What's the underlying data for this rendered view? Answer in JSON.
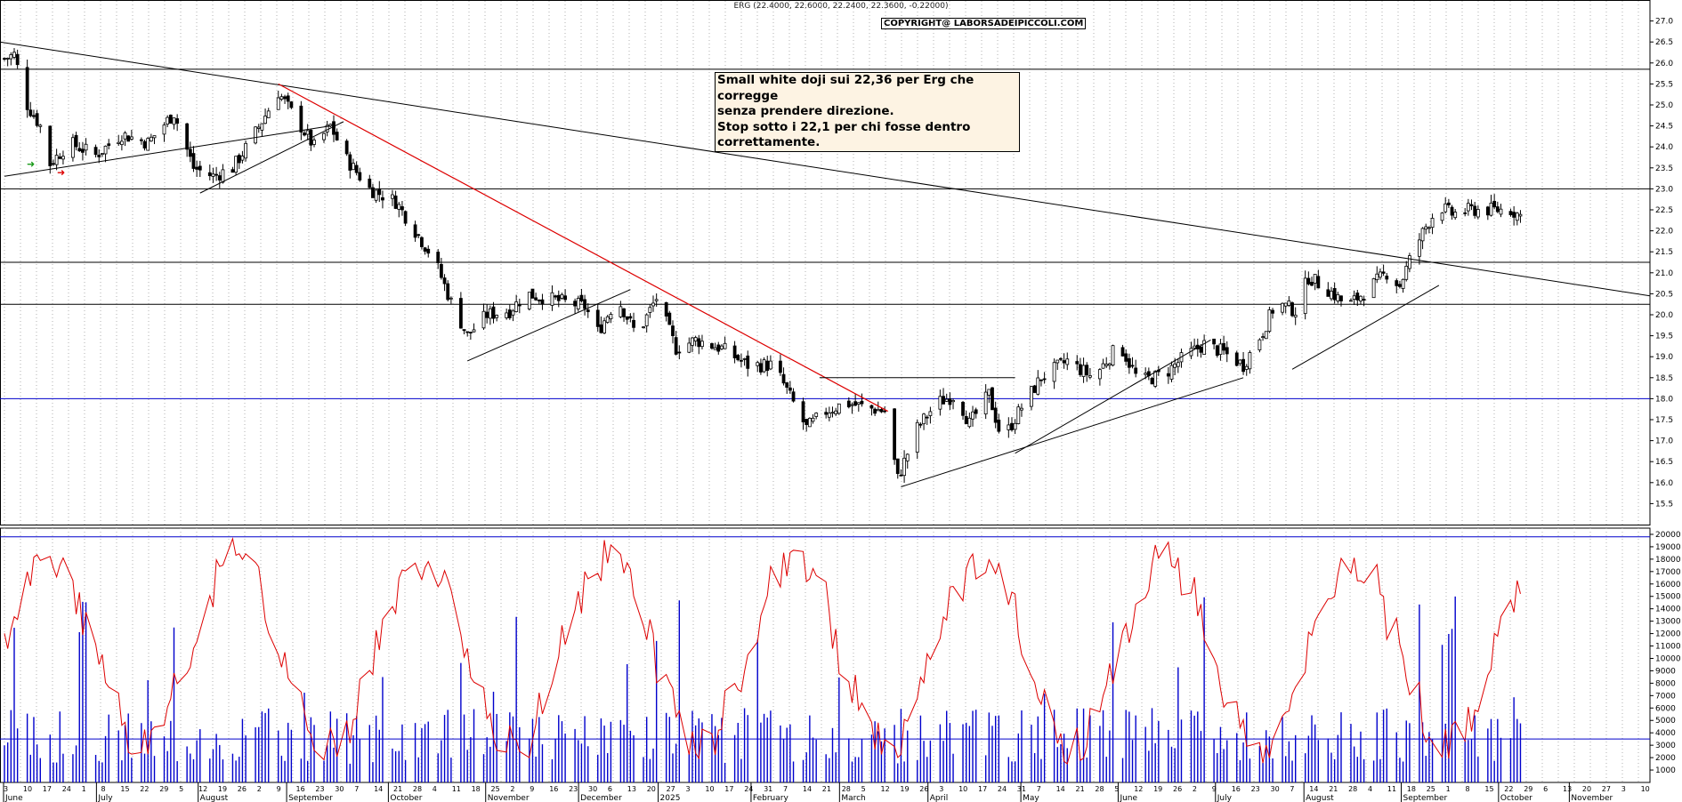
{
  "header": {
    "quote": "ERG (22.4000, 22.6000, 22.2400, 22.3600, -0.22000)",
    "copyright": "COPYRIGHT@ LABORSADEIPICCOLI.COM"
  },
  "note": {
    "line1": "Small white doji sui 22,36 per Erg che corregge",
    "line2": "senza prendere direzione.",
    "line3": "Stop sotto i 22,1 per chi fosse dentro correttamente."
  },
  "chart_data": [
    {
      "type": "candlestick",
      "symbol": "ERG",
      "ylim": [
        15.0,
        27.5
      ],
      "ticks": [
        "15.5",
        "16.0",
        "16.5",
        "17.0",
        "17.5",
        "18.0",
        "18.5",
        "19.0",
        "19.5",
        "20.0",
        "20.5",
        "21.0",
        "21.5",
        "22.0",
        "22.5",
        "23.0",
        "23.5",
        "24.0",
        "24.5",
        "25.0",
        "25.5",
        "26.0",
        "26.5",
        "27.0"
      ],
      "anchors": [
        {
          "d": 0,
          "c": 26.1
        },
        {
          "d": 3,
          "c": 26.2
        },
        {
          "d": 7,
          "c": 25.0
        },
        {
          "d": 11,
          "c": 24.5
        },
        {
          "d": 14,
          "c": 23.6
        },
        {
          "d": 20,
          "c": 24.1
        },
        {
          "d": 28,
          "c": 23.8
        },
        {
          "d": 36,
          "c": 24.3
        },
        {
          "d": 44,
          "c": 24.1
        },
        {
          "d": 52,
          "c": 24.8
        },
        {
          "d": 58,
          "c": 23.5
        },
        {
          "d": 64,
          "c": 23.3
        },
        {
          "d": 70,
          "c": 23.5
        },
        {
          "d": 76,
          "c": 24.2
        },
        {
          "d": 84,
          "c": 25.3
        },
        {
          "d": 90,
          "c": 24.6
        },
        {
          "d": 95,
          "c": 24.0
        },
        {
          "d": 100,
          "c": 24.5
        },
        {
          "d": 105,
          "c": 23.7
        },
        {
          "d": 112,
          "c": 23.0
        },
        {
          "d": 120,
          "c": 22.7
        },
        {
          "d": 126,
          "c": 22.0
        },
        {
          "d": 132,
          "c": 21.3
        },
        {
          "d": 137,
          "c": 20.3
        },
        {
          "d": 142,
          "c": 19.5
        },
        {
          "d": 148,
          "c": 20.0
        },
        {
          "d": 155,
          "c": 20.1
        },
        {
          "d": 160,
          "c": 20.5
        },
        {
          "d": 166,
          "c": 20.4
        },
        {
          "d": 172,
          "c": 20.3
        },
        {
          "d": 178,
          "c": 20.2
        },
        {
          "d": 182,
          "c": 19.6
        },
        {
          "d": 188,
          "c": 20.4
        },
        {
          "d": 194,
          "c": 19.5
        },
        {
          "d": 200,
          "c": 20.4
        },
        {
          "d": 206,
          "c": 19.2
        },
        {
          "d": 212,
          "c": 19.4
        },
        {
          "d": 220,
          "c": 19.2
        },
        {
          "d": 228,
          "c": 18.8
        },
        {
          "d": 236,
          "c": 18.8
        },
        {
          "d": 242,
          "c": 17.9
        },
        {
          "d": 246,
          "c": 17.3
        },
        {
          "d": 252,
          "c": 17.7
        },
        {
          "d": 258,
          "c": 17.9
        },
        {
          "d": 264,
          "c": 17.8
        },
        {
          "d": 270,
          "c": 17.7
        },
        {
          "d": 274,
          "c": 16.1
        },
        {
          "d": 280,
          "c": 17.3
        },
        {
          "d": 286,
          "c": 17.9
        },
        {
          "d": 292,
          "c": 18.1
        },
        {
          "d": 296,
          "c": 17.4
        },
        {
          "d": 302,
          "c": 18.1
        },
        {
          "d": 306,
          "c": 17.0
        },
        {
          "d": 312,
          "c": 17.8
        },
        {
          "d": 318,
          "c": 18.5
        },
        {
          "d": 326,
          "c": 18.9
        },
        {
          "d": 334,
          "c": 18.5
        },
        {
          "d": 342,
          "c": 19.3
        },
        {
          "d": 348,
          "c": 18.4
        },
        {
          "d": 356,
          "c": 18.6
        },
        {
          "d": 362,
          "c": 19.0
        },
        {
          "d": 368,
          "c": 19.3
        },
        {
          "d": 374,
          "c": 19.1
        },
        {
          "d": 380,
          "c": 18.8
        },
        {
          "d": 386,
          "c": 19.6
        },
        {
          "d": 390,
          "c": 20.3
        },
        {
          "d": 396,
          "c": 20.1
        },
        {
          "d": 400,
          "c": 20.9
        },
        {
          "d": 406,
          "c": 20.6
        },
        {
          "d": 412,
          "c": 20.2
        },
        {
          "d": 418,
          "c": 20.6
        },
        {
          "d": 424,
          "c": 21.0
        },
        {
          "d": 428,
          "c": 20.7
        },
        {
          "d": 432,
          "c": 21.5
        },
        {
          "d": 436,
          "c": 22.1
        },
        {
          "d": 440,
          "c": 22.6
        },
        {
          "d": 444,
          "c": 22.4
        },
        {
          "d": 450,
          "c": 22.5
        },
        {
          "d": 456,
          "c": 22.5
        },
        {
          "d": 462,
          "c": 22.5
        },
        {
          "d": 465,
          "c": 22.36
        }
      ],
      "horizontal_levels": [
        {
          "price": 25.85,
          "color": "#000000"
        },
        {
          "price": 23.0,
          "color": "#000000"
        },
        {
          "price": 21.25,
          "color": "#000000"
        },
        {
          "price": 20.25,
          "color": "#000000"
        },
        {
          "price": 18.0,
          "color": "#0000cc"
        }
      ]
    },
    {
      "type": "bar+line",
      "ylim": [
        0,
        20500
      ],
      "ticks": [
        "1000",
        "2000",
        "3000",
        "4000",
        "5000",
        "6000",
        "7000",
        "8000",
        "9000",
        "10000",
        "11000",
        "12000",
        "13000",
        "14000",
        "15000",
        "16000",
        "17000",
        "18000",
        "19000",
        "20000"
      ],
      "volume_color": "#0000cc",
      "oscillator_color": "#dd0000",
      "reference_levels": [
        3500,
        19800
      ]
    }
  ],
  "x_axis": {
    "day_labels": [
      "3",
      "10",
      "17",
      "24",
      "1",
      "8",
      "15",
      "22",
      "29",
      "5",
      "12",
      "19",
      "26",
      "2",
      "9",
      "16",
      "23",
      "30",
      "7",
      "14",
      "21",
      "28",
      "4",
      "11",
      "18",
      "25",
      "2",
      "9",
      "16",
      "23",
      "30",
      "6",
      "13",
      "20",
      "27",
      "3",
      "10",
      "17",
      "24",
      "31",
      "7",
      "14",
      "21",
      "28",
      "5",
      "12",
      "19",
      "26",
      "3",
      "10",
      "17",
      "24",
      "31",
      "7",
      "14",
      "21",
      "28",
      "5",
      "12",
      "19",
      "26",
      "2",
      "9",
      "16",
      "23",
      "30",
      "7",
      "14",
      "21",
      "28",
      "4",
      "11",
      "18",
      "25",
      "1",
      "8",
      "15",
      "22",
      "29",
      "6",
      "13",
      "20",
      "27",
      "3",
      "10"
    ],
    "month_labels": [
      "June",
      "July",
      "August",
      "September",
      "October",
      "November",
      "December",
      "2025",
      "February",
      "March",
      "April",
      "May",
      "June",
      "July",
      "August",
      "September",
      "October",
      "November"
    ],
    "month_day_index": [
      0,
      21,
      44,
      64,
      87,
      109,
      130,
      148,
      169,
      189,
      209,
      230,
      252,
      274,
      294,
      316,
      338,
      354
    ]
  },
  "colors": {
    "candle_up": "#ffffff",
    "candle_down": "#000000",
    "grid": "#b0b0b0",
    "red_trend": "#dd0000",
    "blue_level": "#0000cc",
    "panel_bg": "#ffffff"
  },
  "icons": [
    "green-arrow-icon",
    "red-arrow-icon"
  ]
}
